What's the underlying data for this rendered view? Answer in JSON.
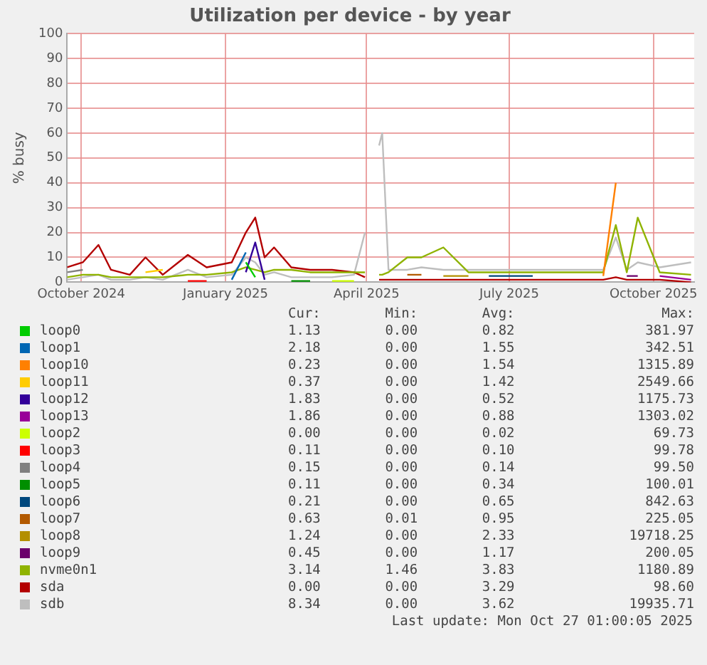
{
  "chart_data": {
    "type": "line",
    "title": "Utilization per device - by year",
    "ylabel": "% busy",
    "x": [
      "2024-09-22",
      "2024-10-02",
      "2024-10-12",
      "2024-10-20",
      "2024-11-01",
      "2024-11-11",
      "2024-11-22",
      "2024-12-08",
      "2024-12-20",
      "2025-01-05",
      "2025-01-14",
      "2025-01-20",
      "2025-01-26",
      "2025-02-01",
      "2025-02-12",
      "2025-02-24",
      "2025-03-10",
      "2025-03-24",
      "2025-03-31",
      "2025-04-04",
      "2025-04-09",
      "2025-04-11",
      "2025-04-15",
      "2025-04-27",
      "2025-05-06",
      "2025-05-20",
      "2025-06-05",
      "2025-06-18",
      "2025-07-16",
      "2025-08-14",
      "2025-08-30",
      "2025-09-07",
      "2025-09-14",
      "2025-09-21",
      "2025-10-05",
      "2025-10-25"
    ],
    "xlim": [
      "2024-09-22",
      "2025-10-27"
    ],
    "xticks": [
      {
        "value": "2024-10-01",
        "label": "October 2024"
      },
      {
        "value": "2025-01-01",
        "label": "January 2025"
      },
      {
        "value": "2025-04-01",
        "label": "April 2025"
      },
      {
        "value": "2025-07-01",
        "label": "July 2025"
      },
      {
        "value": "2025-10-01",
        "label": "October 2025"
      }
    ],
    "ylim": [
      0,
      100
    ],
    "yticks": [
      0,
      10,
      20,
      30,
      40,
      50,
      60,
      70,
      80,
      90,
      100
    ],
    "grid": true,
    "legend": "bottom",
    "marker": "none",
    "series": [
      {
        "name": "loop0",
        "color": "#00cc00",
        "values": [
          null,
          null,
          null,
          null,
          null,
          null,
          null,
          null,
          null,
          null,
          8,
          2,
          null,
          null,
          null,
          null,
          null,
          null,
          null,
          null,
          null,
          null,
          null,
          null,
          null,
          null,
          null,
          null,
          null,
          null,
          null,
          null,
          null,
          null,
          null,
          null
        ]
      },
      {
        "name": "loop1",
        "color": "#0066b3",
        "values": [
          null,
          null,
          null,
          null,
          null,
          null,
          null,
          null,
          null,
          1,
          12,
          null,
          null,
          null,
          null,
          null,
          null,
          null,
          null,
          null,
          null,
          null,
          null,
          null,
          null,
          null,
          null,
          null,
          null,
          null,
          null,
          null,
          null,
          null,
          null,
          null
        ]
      },
      {
        "name": "loop10",
        "color": "#ff8000",
        "values": [
          null,
          null,
          null,
          null,
          null,
          null,
          null,
          null,
          null,
          null,
          null,
          null,
          null,
          null,
          null,
          null,
          null,
          null,
          null,
          null,
          null,
          null,
          null,
          null,
          null,
          null,
          null,
          null,
          null,
          null,
          2.5,
          40,
          null,
          null,
          null,
          null
        ]
      },
      {
        "name": "loop11",
        "color": "#ffcc00",
        "values": [
          null,
          null,
          null,
          null,
          null,
          4,
          5,
          null,
          null,
          null,
          null,
          null,
          null,
          null,
          null,
          null,
          null,
          null,
          null,
          null,
          null,
          null,
          null,
          null,
          null,
          null,
          null,
          null,
          null,
          null,
          null,
          null,
          null,
          null,
          null,
          null
        ]
      },
      {
        "name": "loop12",
        "color": "#330099",
        "values": [
          null,
          null,
          null,
          null,
          null,
          null,
          null,
          null,
          null,
          null,
          4,
          16,
          1,
          null,
          null,
          null,
          null,
          null,
          null,
          null,
          null,
          null,
          null,
          null,
          null,
          null,
          null,
          null,
          null,
          null,
          null,
          null,
          null,
          null,
          null,
          null
        ]
      },
      {
        "name": "loop13",
        "color": "#990099",
        "values": [
          null,
          null,
          null,
          null,
          null,
          null,
          null,
          null,
          null,
          null,
          null,
          null,
          null,
          null,
          null,
          null,
          null,
          null,
          null,
          null,
          null,
          null,
          null,
          null,
          null,
          null,
          null,
          null,
          null,
          null,
          null,
          null,
          null,
          null,
          2.5,
          1
        ]
      },
      {
        "name": "loop2",
        "color": "#ccff00",
        "values": [
          null,
          null,
          null,
          null,
          null,
          null,
          null,
          null,
          null,
          null,
          null,
          null,
          null,
          null,
          null,
          null,
          0.5,
          0.5,
          null,
          null,
          null,
          null,
          null,
          null,
          null,
          null,
          null,
          null,
          null,
          null,
          null,
          null,
          null,
          null,
          null,
          null
        ]
      },
      {
        "name": "loop3",
        "color": "#ff0000",
        "values": [
          null,
          null,
          null,
          null,
          null,
          null,
          null,
          0.5,
          0.5,
          null,
          null,
          null,
          null,
          null,
          null,
          null,
          null,
          null,
          null,
          null,
          null,
          null,
          null,
          null,
          null,
          null,
          null,
          null,
          null,
          null,
          null,
          null,
          null,
          null,
          null,
          null
        ]
      },
      {
        "name": "loop4",
        "color": "#808080",
        "values": [
          4,
          5,
          null,
          null,
          null,
          null,
          null,
          null,
          null,
          null,
          null,
          null,
          null,
          null,
          null,
          null,
          null,
          null,
          null,
          null,
          null,
          null,
          null,
          null,
          null,
          null,
          null,
          null,
          null,
          null,
          null,
          null,
          null,
          null,
          null,
          null
        ]
      },
      {
        "name": "loop5",
        "color": "#008f00",
        "values": [
          null,
          null,
          null,
          null,
          null,
          null,
          null,
          null,
          null,
          null,
          null,
          null,
          null,
          null,
          0.5,
          0.5,
          null,
          null,
          null,
          null,
          null,
          null,
          null,
          null,
          null,
          null,
          null,
          null,
          null,
          null,
          null,
          null,
          null,
          null,
          null,
          null
        ]
      },
      {
        "name": "loop6",
        "color": "#00487d",
        "values": [
          null,
          null,
          null,
          null,
          null,
          null,
          null,
          null,
          null,
          null,
          null,
          null,
          null,
          null,
          null,
          null,
          null,
          null,
          null,
          null,
          null,
          null,
          null,
          null,
          null,
          null,
          null,
          2.5,
          2.5,
          null,
          null,
          null,
          null,
          null,
          null,
          null
        ]
      },
      {
        "name": "loop7",
        "color": "#b35a00",
        "values": [
          null,
          null,
          null,
          null,
          null,
          null,
          null,
          null,
          null,
          null,
          null,
          null,
          null,
          null,
          null,
          null,
          null,
          null,
          null,
          null,
          null,
          null,
          null,
          3,
          3,
          null,
          null,
          null,
          null,
          null,
          null,
          null,
          null,
          null,
          null,
          null
        ]
      },
      {
        "name": "loop8",
        "color": "#b38f00",
        "values": [
          null,
          null,
          null,
          null,
          null,
          null,
          null,
          null,
          null,
          null,
          null,
          null,
          null,
          null,
          null,
          null,
          null,
          null,
          null,
          null,
          null,
          null,
          null,
          null,
          null,
          2.5,
          2.5,
          null,
          null,
          null,
          null,
          null,
          null,
          null,
          null,
          null
        ]
      },
      {
        "name": "loop9",
        "color": "#6b006b",
        "values": [
          null,
          null,
          null,
          null,
          null,
          null,
          null,
          null,
          null,
          null,
          null,
          null,
          null,
          null,
          null,
          null,
          null,
          null,
          null,
          null,
          null,
          null,
          null,
          null,
          null,
          null,
          null,
          null,
          null,
          null,
          null,
          null,
          2.5,
          2.5,
          null,
          null
        ]
      },
      {
        "name": "nvme0n1",
        "color": "#8fb300",
        "values": [
          2,
          3,
          3,
          2,
          2,
          2,
          2,
          3,
          3,
          4,
          6,
          5,
          4,
          5,
          5,
          4,
          4,
          4,
          4,
          null,
          3,
          3,
          4,
          10,
          10,
          14,
          4,
          4,
          4,
          4,
          4,
          23,
          4,
          26,
          4,
          3
        ]
      },
      {
        "name": "sda",
        "color": "#b30000",
        "values": [
          6,
          8,
          15,
          5,
          3,
          10,
          3,
          11,
          6,
          8,
          20,
          26,
          10,
          14,
          6,
          5,
          5,
          4,
          2,
          null,
          1,
          1,
          1,
          1,
          1,
          1,
          1,
          1,
          1,
          1,
          1,
          2,
          1,
          1,
          1,
          0
        ]
      },
      {
        "name": "sdb",
        "color": "#bebebe",
        "values": [
          1,
          2,
          3,
          1,
          1,
          2,
          1,
          5,
          2,
          3,
          10,
          8,
          3,
          4,
          2,
          2,
          2,
          3,
          20,
          null,
          55,
          60,
          5,
          5,
          6,
          5,
          5,
          5,
          5,
          5,
          5,
          18,
          5,
          8,
          6,
          8
        ]
      }
    ],
    "annotations": [
      "Cur:",
      "Min:",
      "Avg:",
      "Max:",
      "1.13",
      "0.00",
      "0.82",
      "381.97",
      "2.18",
      "0.00",
      "1.55",
      "342.51",
      "0.23",
      "0.00",
      "1.54",
      "1315.89",
      "0.37",
      "0.00",
      "1.42",
      "2549.66",
      "1.83",
      "0.00",
      "0.52",
      "1175.73",
      "1.86",
      "0.00",
      "0.88",
      "1303.02",
      "0.00",
      "0.00",
      "0.02",
      "69.73",
      "0.11",
      "0.00",
      "0.10",
      "99.78",
      "0.15",
      "0.00",
      "0.14",
      "99.50",
      "0.11",
      "0.00",
      "0.34",
      "100.01",
      "0.21",
      "0.00",
      "0.65",
      "842.63",
      "0.63",
      "0.01",
      "0.95",
      "225.05",
      "1.24",
      "0.00",
      "2.33",
      "19718.25",
      "0.45",
      "0.00",
      "1.17",
      "200.05",
      "3.14",
      "1.46",
      "3.83",
      "1180.89",
      "0.00",
      "0.00",
      "3.29",
      "98.60",
      "8.34",
      "0.00",
      "3.62",
      "19935.71",
      "Last update: Mon Oct 27 01:00:05 2025"
    ]
  }
}
